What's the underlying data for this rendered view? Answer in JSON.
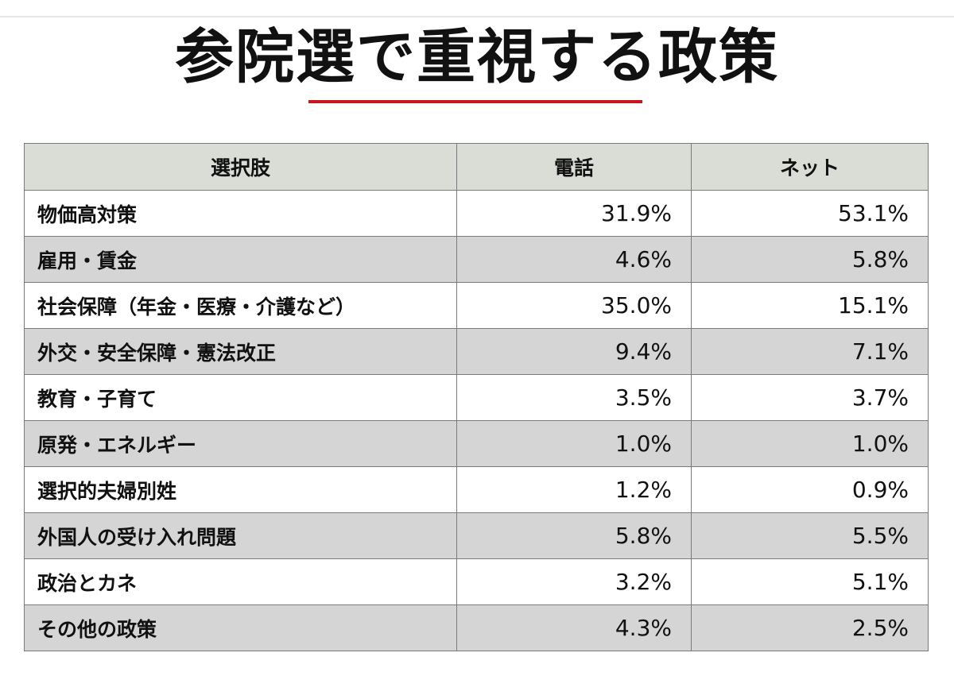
{
  "title": "参院選で重視する政策",
  "table": {
    "headers": [
      "選択肢",
      "電話",
      "ネット"
    ],
    "rows": [
      {
        "label": "物価高対策",
        "phone": "31.9%",
        "net": "53.1%"
      },
      {
        "label": "雇用・賃金",
        "phone": "4.6%",
        "net": "5.8%"
      },
      {
        "label": "社会保障（年金・医療・介護など）",
        "phone": "35.0%",
        "net": "15.1%"
      },
      {
        "label": "外交・安全保障・憲法改正",
        "phone": "9.4%",
        "net": "7.1%"
      },
      {
        "label": "教育・子育て",
        "phone": "3.5%",
        "net": "3.7%"
      },
      {
        "label": "原発・エネルギー",
        "phone": "1.0%",
        "net": "1.0%"
      },
      {
        "label": "選択的夫婦別姓",
        "phone": "1.2%",
        "net": "0.9%"
      },
      {
        "label": "外国人の受け入れ問題",
        "phone": "5.8%",
        "net": "5.5%"
      },
      {
        "label": "政治とカネ",
        "phone": "3.2%",
        "net": "5.1%"
      },
      {
        "label": "その他の政策",
        "phone": "4.3%",
        "net": "2.5%"
      }
    ]
  },
  "chart_data": {
    "type": "table",
    "title": "参院選で重視する政策",
    "columns": [
      "選択肢",
      "電話",
      "ネット"
    ],
    "categories": [
      "物価高対策",
      "雇用・賃金",
      "社会保障（年金・医療・介護など）",
      "外交・安全保障・憲法改正",
      "教育・子育て",
      "原発・エネルギー",
      "選択的夫婦別姓",
      "外国人の受け入れ問題",
      "政治とカネ",
      "その他の政策"
    ],
    "series": [
      {
        "name": "電話",
        "values": [
          31.9,
          4.6,
          35.0,
          9.4,
          3.5,
          1.0,
          1.2,
          5.8,
          3.2,
          4.3
        ]
      },
      {
        "name": "ネット",
        "values": [
          53.1,
          5.8,
          15.1,
          7.1,
          3.7,
          1.0,
          0.9,
          5.5,
          5.1,
          2.5
        ]
      }
    ]
  },
  "colors": {
    "accent": "#c8161d",
    "header_bg": "#d9ddd6",
    "stripe_bg": "#d5d5d5",
    "border": "#7a7a7a"
  }
}
